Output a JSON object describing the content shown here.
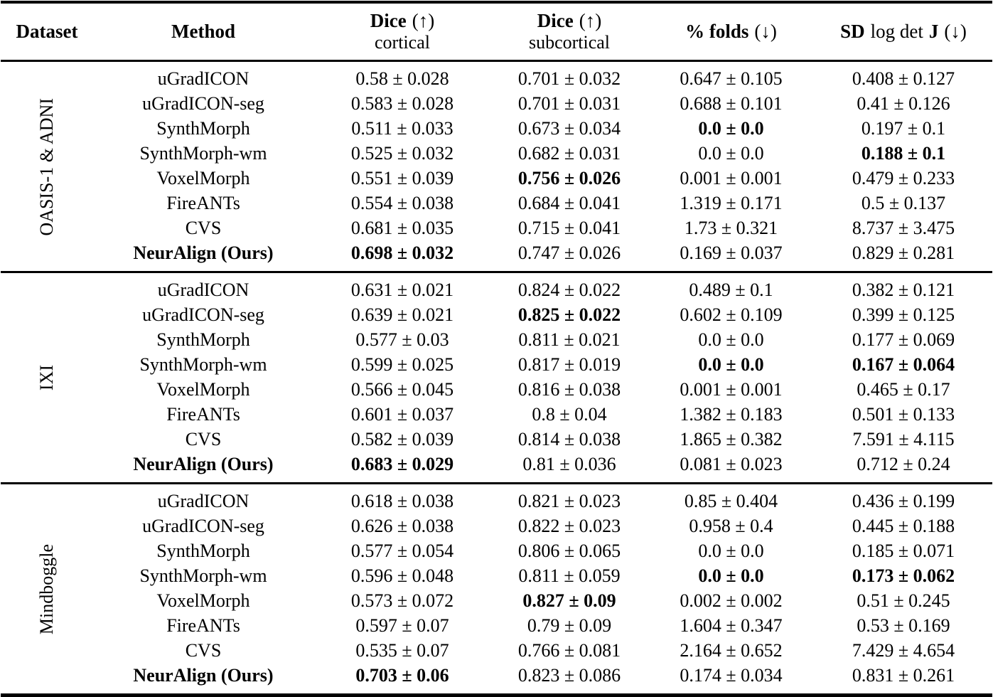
{
  "table": {
    "headers": {
      "dataset": "Dataset",
      "method": "Method",
      "dice_cortical": {
        "metric": "Dice",
        "arrow": "(↑)",
        "sub": "cortical"
      },
      "dice_subcortical": {
        "metric": "Dice",
        "arrow": "(↑)",
        "sub": "subcortical"
      },
      "folds": {
        "metric": "% folds",
        "arrow": "(↓)"
      },
      "sd": {
        "bold1": "SD",
        "mid": "log det",
        "bold2": "J",
        "arrow": "(↓)"
      }
    },
    "column_meanings": [
      "dataset",
      "method",
      "dice_cortical",
      "dice_subcortical",
      "pct_folds",
      "sd_log_det_j"
    ],
    "groups": [
      {
        "dataset": "OASIS-1 & ADNI",
        "rows": [
          {
            "method": "uGradICON",
            "method_bold": false,
            "values": [
              {
                "t": "0.58 ± 0.028",
                "b": false
              },
              {
                "t": "0.701 ± 0.032",
                "b": false
              },
              {
                "t": "0.647 ± 0.105",
                "b": false
              },
              {
                "t": "0.408 ± 0.127",
                "b": false
              }
            ]
          },
          {
            "method": "uGradICON-seg",
            "method_bold": false,
            "values": [
              {
                "t": "0.583 ± 0.028",
                "b": false
              },
              {
                "t": "0.701 ± 0.031",
                "b": false
              },
              {
                "t": "0.688 ± 0.101",
                "b": false
              },
              {
                "t": "0.41 ± 0.126",
                "b": false
              }
            ]
          },
          {
            "method": "SynthMorph",
            "method_bold": false,
            "values": [
              {
                "t": "0.511 ± 0.033",
                "b": false
              },
              {
                "t": "0.673 ± 0.034",
                "b": false
              },
              {
                "t": "0.0 ± 0.0",
                "b": true
              },
              {
                "t": "0.197 ± 0.1",
                "b": false
              }
            ]
          },
          {
            "method": "SynthMorph-wm",
            "method_bold": false,
            "values": [
              {
                "t": "0.525 ± 0.032",
                "b": false
              },
              {
                "t": "0.682 ± 0.031",
                "b": false
              },
              {
                "t": "0.0 ± 0.0",
                "b": false
              },
              {
                "t": "0.188 ± 0.1",
                "b": true
              }
            ]
          },
          {
            "method": "VoxelMorph",
            "method_bold": false,
            "values": [
              {
                "t": "0.551 ± 0.039",
                "b": false
              },
              {
                "t": "0.756 ± 0.026",
                "b": true
              },
              {
                "t": "0.001 ± 0.001",
                "b": false
              },
              {
                "t": "0.479 ± 0.233",
                "b": false
              }
            ]
          },
          {
            "method": "FireANTs",
            "method_bold": false,
            "values": [
              {
                "t": "0.554 ± 0.038",
                "b": false
              },
              {
                "t": "0.684 ± 0.041",
                "b": false
              },
              {
                "t": "1.319 ± 0.171",
                "b": false
              },
              {
                "t": "0.5 ± 0.137",
                "b": false
              }
            ]
          },
          {
            "method": "CVS",
            "method_bold": false,
            "values": [
              {
                "t": "0.681 ± 0.035",
                "b": false
              },
              {
                "t": "0.715 ± 0.041",
                "b": false
              },
              {
                "t": "1.73 ± 0.321",
                "b": false
              },
              {
                "t": "8.737 ± 3.475",
                "b": false
              }
            ]
          },
          {
            "method": "NeurAlign (Ours)",
            "method_bold": true,
            "values": [
              {
                "t": "0.698 ± 0.032",
                "b": true
              },
              {
                "t": "0.747 ± 0.026",
                "b": false
              },
              {
                "t": "0.169 ± 0.037",
                "b": false
              },
              {
                "t": "0.829 ± 0.281",
                "b": false
              }
            ]
          }
        ]
      },
      {
        "dataset": "IXI",
        "rows": [
          {
            "method": "uGradICON",
            "method_bold": false,
            "values": [
              {
                "t": "0.631 ± 0.021",
                "b": false
              },
              {
                "t": "0.824 ± 0.022",
                "b": false
              },
              {
                "t": "0.489 ± 0.1",
                "b": false
              },
              {
                "t": "0.382 ± 0.121",
                "b": false
              }
            ]
          },
          {
            "method": "uGradICON-seg",
            "method_bold": false,
            "values": [
              {
                "t": "0.639 ± 0.021",
                "b": false
              },
              {
                "t": "0.825 ± 0.022",
                "b": true
              },
              {
                "t": "0.602 ± 0.109",
                "b": false
              },
              {
                "t": "0.399 ± 0.125",
                "b": false
              }
            ]
          },
          {
            "method": "SynthMorph",
            "method_bold": false,
            "values": [
              {
                "t": "0.577 ± 0.03",
                "b": false
              },
              {
                "t": "0.811 ± 0.021",
                "b": false
              },
              {
                "t": "0.0 ± 0.0",
                "b": false
              },
              {
                "t": "0.177 ± 0.069",
                "b": false
              }
            ]
          },
          {
            "method": "SynthMorph-wm",
            "method_bold": false,
            "values": [
              {
                "t": "0.599 ± 0.025",
                "b": false
              },
              {
                "t": "0.817 ± 0.019",
                "b": false
              },
              {
                "t": "0.0 ± 0.0",
                "b": true
              },
              {
                "t": "0.167 ± 0.064",
                "b": true
              }
            ]
          },
          {
            "method": "VoxelMorph",
            "method_bold": false,
            "values": [
              {
                "t": "0.566 ± 0.045",
                "b": false
              },
              {
                "t": "0.816 ± 0.038",
                "b": false
              },
              {
                "t": "0.001 ± 0.001",
                "b": false
              },
              {
                "t": "0.465 ± 0.17",
                "b": false
              }
            ]
          },
          {
            "method": "FireANTs",
            "method_bold": false,
            "values": [
              {
                "t": "0.601 ± 0.037",
                "b": false
              },
              {
                "t": "0.8 ± 0.04",
                "b": false
              },
              {
                "t": "1.382 ± 0.183",
                "b": false
              },
              {
                "t": "0.501 ± 0.133",
                "b": false
              }
            ]
          },
          {
            "method": "CVS",
            "method_bold": false,
            "values": [
              {
                "t": "0.582 ± 0.039",
                "b": false
              },
              {
                "t": "0.814 ± 0.038",
                "b": false
              },
              {
                "t": "1.865 ± 0.382",
                "b": false
              },
              {
                "t": "7.591 ± 4.115",
                "b": false
              }
            ]
          },
          {
            "method": "NeurAlign (Ours)",
            "method_bold": true,
            "values": [
              {
                "t": "0.683 ± 0.029",
                "b": true
              },
              {
                "t": "0.81 ± 0.036",
                "b": false
              },
              {
                "t": "0.081 ± 0.023",
                "b": false
              },
              {
                "t": "0.712 ± 0.24",
                "b": false
              }
            ]
          }
        ]
      },
      {
        "dataset": "Mindboggle",
        "rows": [
          {
            "method": "uGradICON",
            "method_bold": false,
            "values": [
              {
                "t": "0.618 ± 0.038",
                "b": false
              },
              {
                "t": "0.821 ± 0.023",
                "b": false
              },
              {
                "t": "0.85 ± 0.404",
                "b": false
              },
              {
                "t": "0.436 ± 0.199",
                "b": false
              }
            ]
          },
          {
            "method": "uGradICON-seg",
            "method_bold": false,
            "values": [
              {
                "t": "0.626 ± 0.038",
                "b": false
              },
              {
                "t": "0.822 ± 0.023",
                "b": false
              },
              {
                "t": "0.958 ± 0.4",
                "b": false
              },
              {
                "t": "0.445 ± 0.188",
                "b": false
              }
            ]
          },
          {
            "method": "SynthMorph",
            "method_bold": false,
            "values": [
              {
                "t": "0.577 ± 0.054",
                "b": false
              },
              {
                "t": "0.806 ± 0.065",
                "b": false
              },
              {
                "t": "0.0 ± 0.0",
                "b": false
              },
              {
                "t": "0.185 ± 0.071",
                "b": false
              }
            ]
          },
          {
            "method": "SynthMorph-wm",
            "method_bold": false,
            "values": [
              {
                "t": "0.596 ± 0.048",
                "b": false
              },
              {
                "t": "0.811 ± 0.059",
                "b": false
              },
              {
                "t": "0.0 ± 0.0",
                "b": true
              },
              {
                "t": "0.173 ± 0.062",
                "b": true
              }
            ]
          },
          {
            "method": "VoxelMorph",
            "method_bold": false,
            "values": [
              {
                "t": "0.573 ± 0.072",
                "b": false
              },
              {
                "t": "0.827 ± 0.09",
                "b": true
              },
              {
                "t": "0.002 ± 0.002",
                "b": false
              },
              {
                "t": "0.51 ± 0.245",
                "b": false
              }
            ]
          },
          {
            "method": "FireANTs",
            "method_bold": false,
            "values": [
              {
                "t": "0.597 ± 0.07",
                "b": false
              },
              {
                "t": "0.79 ± 0.09",
                "b": false
              },
              {
                "t": "1.604 ± 0.347",
                "b": false
              },
              {
                "t": "0.53 ± 0.169",
                "b": false
              }
            ]
          },
          {
            "method": "CVS",
            "method_bold": false,
            "values": [
              {
                "t": "0.535 ± 0.07",
                "b": false
              },
              {
                "t": "0.766 ± 0.081",
                "b": false
              },
              {
                "t": "2.164 ± 0.652",
                "b": false
              },
              {
                "t": "7.429 ± 4.654",
                "b": false
              }
            ]
          },
          {
            "method": "NeurAlign (Ours)",
            "method_bold": true,
            "values": [
              {
                "t": "0.703 ± 0.06",
                "b": true
              },
              {
                "t": "0.823 ± 0.086",
                "b": false
              },
              {
                "t": "0.174 ± 0.034",
                "b": false
              },
              {
                "t": "0.831 ± 0.261",
                "b": false
              }
            ]
          }
        ]
      }
    ]
  }
}
